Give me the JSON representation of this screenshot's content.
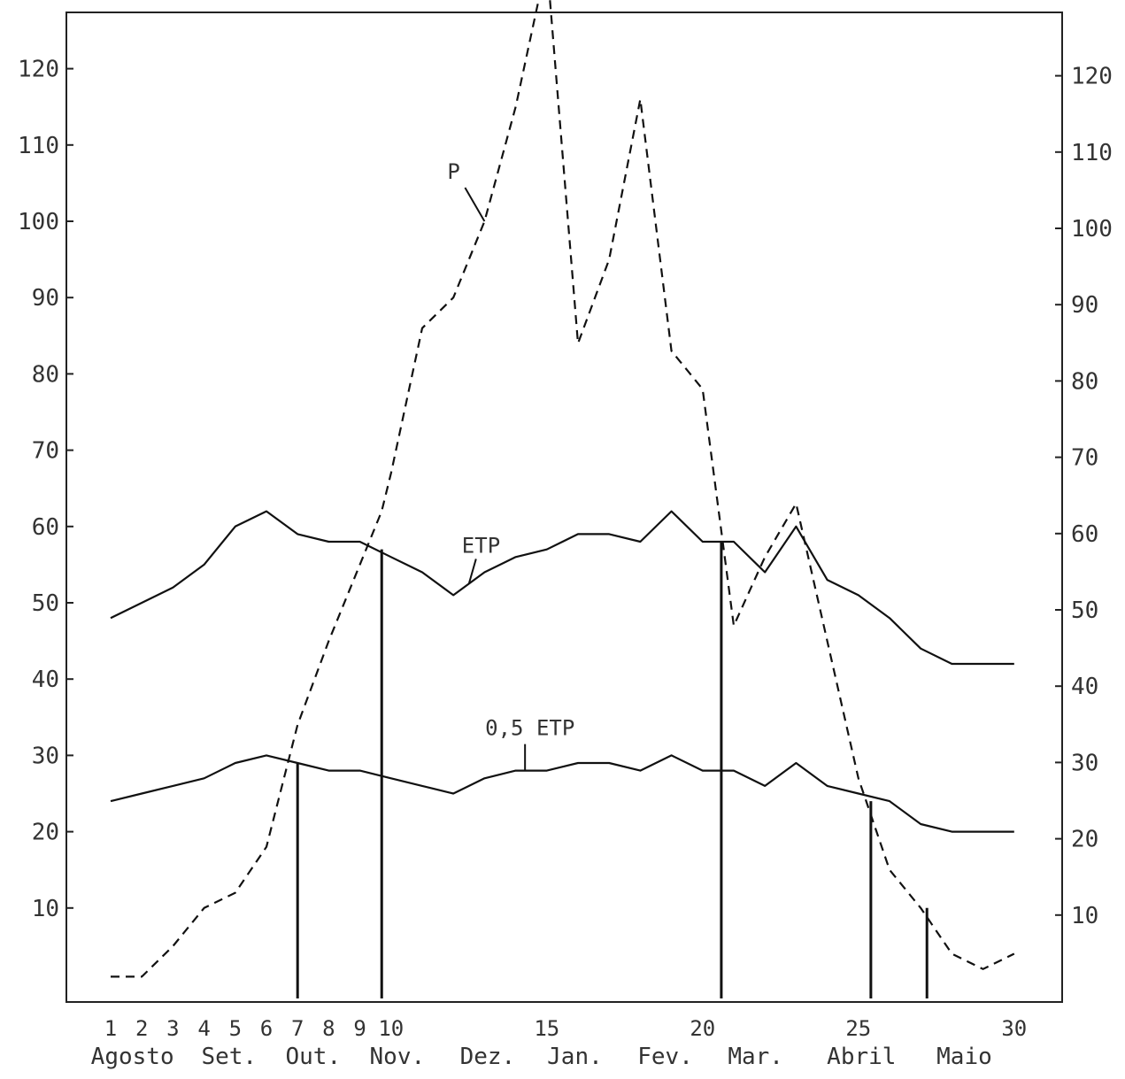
{
  "chart_data": {
    "type": "line",
    "title": "",
    "xlabel": "",
    "ylabel": "",
    "xlim": [
      0,
      30
    ],
    "ylim": [
      0,
      125
    ],
    "y_ticks_left": [
      "10",
      "20",
      "30",
      "40",
      "50",
      "60",
      "70",
      "80",
      "90",
      "100",
      "110",
      "120"
    ],
    "y_ticks_right": [
      "10",
      "20",
      "30",
      "40",
      "50",
      "60",
      "70",
      "80",
      "90",
      "100",
      "110",
      "120"
    ],
    "x_ticks": [
      {
        "x": 1,
        "label": "1"
      },
      {
        "x": 2,
        "label": "2"
      },
      {
        "x": 3,
        "label": "3"
      },
      {
        "x": 4,
        "label": "4"
      },
      {
        "x": 5,
        "label": "5"
      },
      {
        "x": 6,
        "label": "6"
      },
      {
        "x": 7,
        "label": "7"
      },
      {
        "x": 8,
        "label": "8"
      },
      {
        "x": 9,
        "label": "9"
      },
      {
        "x": 10,
        "label": "10"
      },
      {
        "x": 15,
        "label": "15"
      },
      {
        "x": 20,
        "label": "20"
      },
      {
        "x": 25,
        "label": "25"
      },
      {
        "x": 30,
        "label": "30"
      }
    ],
    "months": [
      {
        "x": 1.7,
        "label": "Agosto"
      },
      {
        "x": 4.8,
        "label": "Set."
      },
      {
        "x": 7.5,
        "label": "Out."
      },
      {
        "x": 10.2,
        "label": "Nov."
      },
      {
        "x": 13.1,
        "label": "Dez."
      },
      {
        "x": 15.9,
        "label": "Jan."
      },
      {
        "x": 18.8,
        "label": "Fev."
      },
      {
        "x": 21.7,
        "label": "Mar."
      },
      {
        "x": 25.1,
        "label": "Abril"
      },
      {
        "x": 28.4,
        "label": "Maio"
      }
    ],
    "series": [
      {
        "name": "P",
        "style": "dashed",
        "x": [
          1,
          2,
          3,
          4,
          5,
          6,
          7,
          8,
          9,
          9.7,
          10,
          11,
          12,
          13,
          14,
          15,
          16,
          17,
          18,
          19,
          20,
          21,
          22,
          23,
          24,
          25,
          26,
          27,
          28,
          29,
          30
        ],
        "values": [
          1,
          1,
          5,
          10,
          12,
          18,
          34,
          45,
          55,
          62,
          67,
          86,
          90,
          100,
          115,
          134,
          84,
          95,
          116,
          83,
          78,
          47,
          56,
          63,
          45,
          27,
          15,
          10,
          4,
          2,
          4
        ]
      },
      {
        "name": "ETP",
        "style": "solid",
        "x": [
          1,
          2,
          3,
          4,
          5,
          6,
          7,
          8,
          9,
          10,
          11,
          12,
          13,
          14,
          15,
          16,
          17,
          18,
          19,
          20,
          21,
          22,
          23,
          24,
          25,
          26,
          27,
          28,
          29,
          30
        ],
        "values": [
          48,
          50,
          52,
          55,
          60,
          62,
          59,
          58,
          58,
          56,
          54,
          51,
          54,
          56,
          57,
          59,
          59,
          58,
          62,
          58,
          58,
          54,
          60,
          53,
          51,
          48,
          44,
          42,
          42,
          42
        ]
      },
      {
        "name": "0,5 ETP",
        "style": "solid",
        "x": [
          1,
          2,
          3,
          4,
          5,
          6,
          7,
          8,
          9,
          10,
          11,
          12,
          13,
          14,
          15,
          16,
          17,
          18,
          19,
          20,
          21,
          22,
          23,
          24,
          25,
          26,
          27,
          28,
          29,
          30
        ],
        "values": [
          24,
          25,
          26,
          27,
          29,
          30,
          29,
          28,
          28,
          27,
          26,
          25,
          27,
          28,
          28,
          29,
          29,
          28,
          30,
          28,
          28,
          26,
          29,
          26,
          25,
          24,
          21,
          20,
          20,
          20
        ]
      }
    ],
    "vertical_markers": [
      {
        "x": 7,
        "y_top": 29
      },
      {
        "x": 9.7,
        "y_top": 57
      },
      {
        "x": 20.6,
        "y_top": 58
      },
      {
        "x": 25.4,
        "y_top": 24
      },
      {
        "x": 27.2,
        "y_top": 10
      }
    ],
    "annotations": [
      {
        "text": "P",
        "series": "P",
        "at_x": 13
      },
      {
        "text": "ETP",
        "series": "ETP",
        "at_x": 12.5
      },
      {
        "text": "0,5 ETP",
        "series": "0,5 ETP",
        "at_x": 14.3
      }
    ],
    "grid": false,
    "legend": "none"
  }
}
